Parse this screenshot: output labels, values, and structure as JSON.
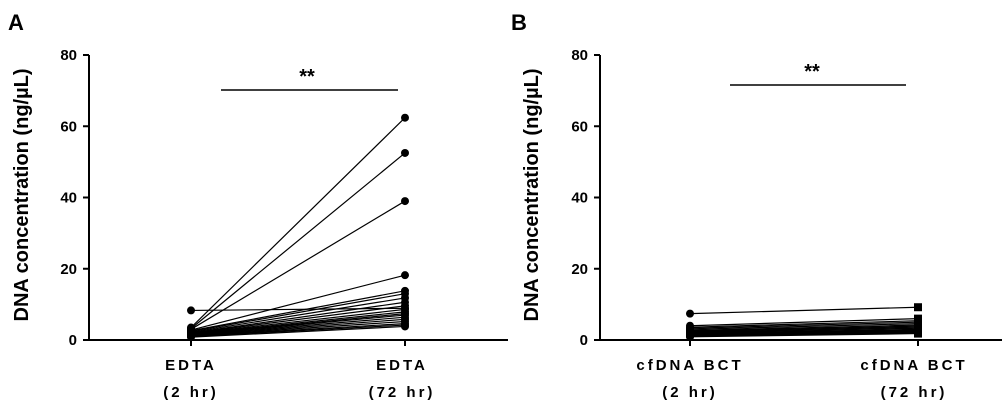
{
  "chart_data": [
    {
      "panel": "A",
      "type": "line",
      "ylabel": "DNA concentration (ng/µL)",
      "ylim": [
        0,
        80
      ],
      "yticks": [
        "0",
        "20",
        "40",
        "60",
        "80"
      ],
      "categories": [
        {
          "line1": "EDTA",
          "line2": "(2 hr)"
        },
        {
          "line1": "EDTA",
          "line2": "(72 hr)"
        }
      ],
      "significance": "**",
      "marker": "circle",
      "pairs": [
        [
          8.3,
          8.9
        ],
        [
          3.5,
          62.4
        ],
        [
          3.2,
          52.5
        ],
        [
          3.0,
          39.0
        ],
        [
          2.8,
          18.2
        ],
        [
          2.6,
          13.8
        ],
        [
          2.4,
          13.0
        ],
        [
          2.2,
          11.8
        ],
        [
          2.0,
          10.6
        ],
        [
          1.9,
          9.6
        ],
        [
          1.8,
          8.6
        ],
        [
          1.7,
          7.9
        ],
        [
          1.6,
          7.4
        ],
        [
          1.5,
          7.0
        ],
        [
          1.4,
          6.4
        ],
        [
          1.3,
          5.8
        ],
        [
          1.2,
          5.2
        ],
        [
          1.1,
          4.6
        ],
        [
          1.0,
          4.2
        ],
        [
          0.8,
          3.8
        ]
      ]
    },
    {
      "panel": "B",
      "type": "line",
      "ylabel": "DNA concentration (ng/µL)",
      "ylim": [
        0,
        80
      ],
      "yticks": [
        "0",
        "20",
        "40",
        "60",
        "80"
      ],
      "categories": [
        {
          "line1": "cfDNA BCT",
          "line2": "(2 hr)"
        },
        {
          "line1": "cfDNA BCT",
          "line2": "(72 hr)"
        }
      ],
      "significance": "**",
      "marker": "circle-to-square",
      "pairs": [
        [
          7.4,
          9.2
        ],
        [
          4.0,
          6.0
        ],
        [
          3.6,
          5.4
        ],
        [
          3.3,
          5.0
        ],
        [
          3.0,
          4.6
        ],
        [
          2.7,
          4.2
        ],
        [
          2.5,
          3.9
        ],
        [
          2.3,
          3.6
        ],
        [
          2.1,
          3.3
        ],
        [
          1.9,
          3.0
        ],
        [
          1.7,
          2.8
        ],
        [
          1.5,
          2.6
        ],
        [
          1.4,
          2.4
        ],
        [
          1.2,
          2.2
        ],
        [
          1.0,
          2.0
        ],
        [
          0.9,
          1.8
        ]
      ]
    }
  ]
}
